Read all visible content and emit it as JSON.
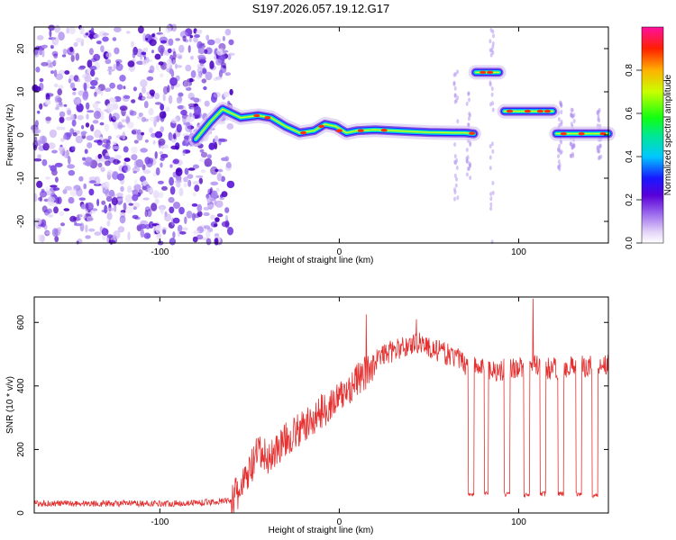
{
  "title": "S197.2026.057.19.12.G17",
  "chart_data": [
    {
      "type": "heatmap",
      "title": "S197.2026.057.19.12.G17",
      "xlabel": "Height of straight line (km)",
      "ylabel": "Frequency (Hz)",
      "xlim": [
        -170,
        150
      ],
      "ylim": [
        -25,
        25
      ],
      "xticks": [
        -100,
        0,
        100
      ],
      "yticks": [
        -20,
        -10,
        0,
        10,
        20
      ],
      "colorbar": {
        "label": "Normalized spectral amplitude",
        "range": [
          0,
          1
        ],
        "ticks": [
          "0.0",
          "0.2",
          "0.4",
          "0.6",
          "0.8"
        ]
      },
      "trace": [
        {
          "x": -80,
          "f": -1
        },
        {
          "x": -72,
          "f": 3
        },
        {
          "x": -65,
          "f": 6
        },
        {
          "x": -60,
          "f": 5
        },
        {
          "x": -55,
          "f": 4
        },
        {
          "x": -45,
          "f": 4.5
        },
        {
          "x": -38,
          "f": 4
        },
        {
          "x": -30,
          "f": 2
        },
        {
          "x": -22,
          "f": 0.5
        },
        {
          "x": -14,
          "f": 1
        },
        {
          "x": -8,
          "f": 2.5
        },
        {
          "x": -2,
          "f": 2
        },
        {
          "x": 4,
          "f": 0.5
        },
        {
          "x": 10,
          "f": 1
        },
        {
          "x": 20,
          "f": 1.2
        },
        {
          "x": 30,
          "f": 1
        },
        {
          "x": 40,
          "f": 0.8
        },
        {
          "x": 50,
          "f": 0.6
        },
        {
          "x": 64,
          "f": 0.5
        },
        {
          "x": 70,
          "f": 0.5
        },
        {
          "x": 75,
          "f": 0.3
        }
      ],
      "segments": [
        {
          "x0": 76,
          "x1": 89,
          "f": 14.5
        },
        {
          "x0": 92,
          "x1": 119,
          "f": 5.5
        },
        {
          "x0": 121,
          "x1": 150,
          "f": 0.3
        }
      ]
    },
    {
      "type": "line",
      "xlabel": "Height of straight line (km)",
      "ylabel": "SNR (10 * v/v)",
      "xlim": [
        -170,
        150
      ],
      "ylim": [
        0,
        680
      ],
      "xticks": [
        -100,
        0,
        100
      ],
      "yticks": [
        0,
        200,
        400,
        600
      ],
      "color": "#e53030",
      "x": [
        -170,
        -150,
        -130,
        -110,
        -90,
        -70,
        -60,
        -55,
        -50,
        -45,
        -40,
        -35,
        -30,
        -25,
        -20,
        -15,
        -10,
        -5,
        0,
        5,
        10,
        15,
        20,
        25,
        30,
        35,
        40,
        45,
        50,
        55,
        60,
        65,
        70,
        75,
        80,
        85,
        90,
        95,
        100,
        105,
        110,
        115,
        120,
        125,
        130,
        135,
        140,
        145,
        150
      ],
      "values": [
        30,
        30,
        30,
        30,
        30,
        35,
        40,
        70,
        130,
        190,
        170,
        200,
        230,
        250,
        270,
        290,
        320,
        340,
        360,
        390,
        420,
        440,
        480,
        500,
        510,
        520,
        530,
        540,
        520,
        510,
        500,
        490,
        470,
        460,
        455,
        450,
        450,
        455,
        460,
        455,
        465,
        455,
        455,
        460,
        460,
        460,
        465,
        470,
        470
      ],
      "dropouts": [
        {
          "x0": 72,
          "x1": 75,
          "value": 60
        },
        {
          "x0": 81,
          "x1": 83,
          "value": 65
        },
        {
          "x0": 92,
          "x1": 95,
          "value": 60
        },
        {
          "x0": 103,
          "x1": 106,
          "value": 55
        },
        {
          "x0": 112,
          "x1": 115,
          "value": 60
        },
        {
          "x0": 122,
          "x1": 125,
          "value": 60
        },
        {
          "x0": 132,
          "x1": 135,
          "value": 60
        },
        {
          "x0": 141,
          "x1": 144,
          "value": 55
        }
      ],
      "spikes": [
        {
          "x": 15,
          "value": 625
        },
        {
          "x": 43,
          "value": 610
        },
        {
          "x": 108,
          "value": 675
        }
      ]
    }
  ]
}
